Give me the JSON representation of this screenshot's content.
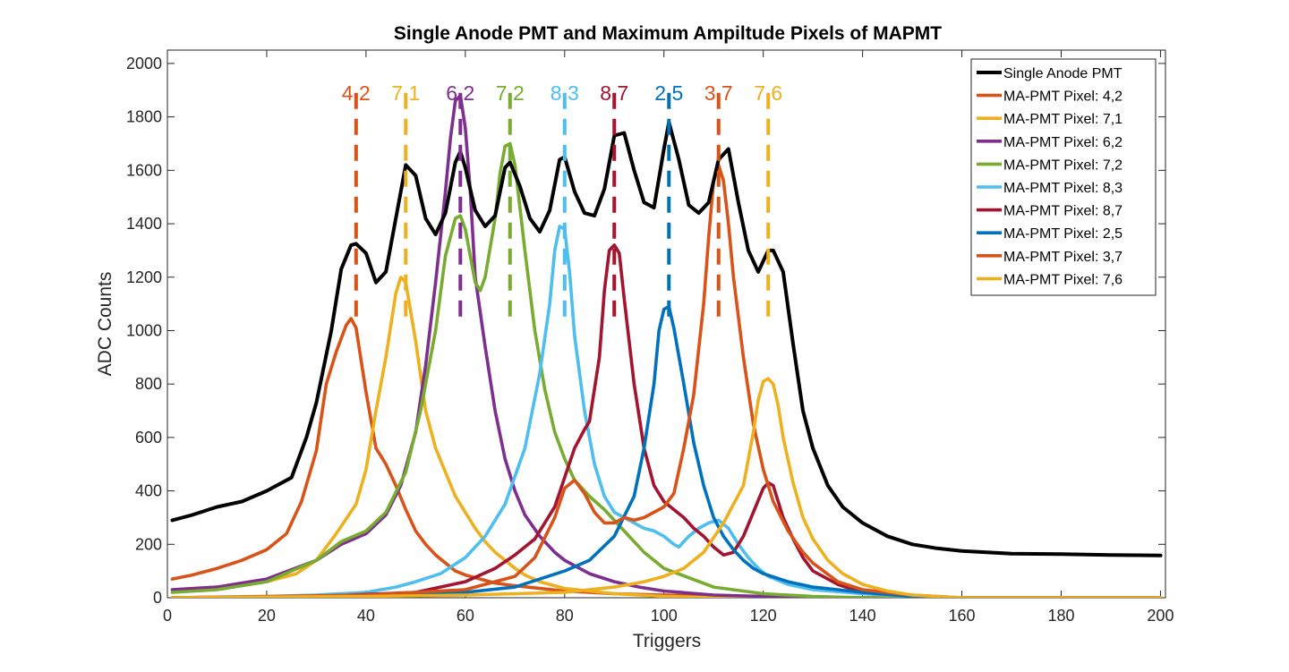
{
  "chart_data": {
    "type": "line",
    "title": "Single Anode PMT and Maximum Ampiltude Pixels of MAPMT",
    "xlabel": "Triggers",
    "ylabel": "ADC Counts",
    "xlim": [
      0,
      201
    ],
    "ylim": [
      0,
      2050
    ],
    "xticks": [
      0,
      20,
      40,
      60,
      80,
      100,
      120,
      140,
      160,
      180,
      200
    ],
    "yticks": [
      0,
      200,
      400,
      600,
      800,
      1000,
      1200,
      1400,
      1600,
      1800,
      2000
    ],
    "xtick_labels": [
      "0",
      "20",
      "40",
      "60",
      "80",
      "100",
      "120",
      "140",
      "160",
      "180",
      "200"
    ],
    "ytick_labels": [
      "0",
      "200",
      "400",
      "600",
      "800",
      "1000",
      "1200",
      "1400",
      "1600",
      "1800",
      "2000"
    ],
    "grid": false,
    "legend_position": "top-right",
    "series": [
      {
        "name": "Single Anode PMT",
        "color": "#000000",
        "x": [
          1,
          5,
          10,
          15,
          20,
          25,
          28,
          30,
          33,
          35,
          37,
          38,
          40,
          42,
          44,
          46,
          48,
          50,
          52,
          54,
          56,
          58,
          59,
          60,
          62,
          64,
          66,
          68,
          69,
          71,
          73,
          75,
          77,
          79,
          80,
          82,
          84,
          86,
          88,
          90,
          92,
          94,
          96,
          98,
          100,
          101,
          103,
          105,
          107,
          109,
          111,
          113,
          115,
          117,
          119,
          121,
          122,
          124,
          126,
          128,
          130,
          133,
          136,
          140,
          145,
          150,
          155,
          160,
          170,
          180,
          190,
          200
        ],
        "y": [
          290,
          310,
          340,
          360,
          400,
          450,
          600,
          730,
          1000,
          1230,
          1320,
          1325,
          1290,
          1180,
          1220,
          1420,
          1620,
          1580,
          1420,
          1360,
          1440,
          1630,
          1670,
          1610,
          1450,
          1390,
          1430,
          1610,
          1630,
          1540,
          1420,
          1370,
          1450,
          1640,
          1650,
          1520,
          1440,
          1430,
          1530,
          1730,
          1740,
          1600,
          1480,
          1460,
          1680,
          1780,
          1640,
          1470,
          1440,
          1480,
          1640,
          1680,
          1480,
          1300,
          1220,
          1300,
          1300,
          1220,
          950,
          700,
          560,
          420,
          340,
          280,
          230,
          200,
          185,
          175,
          165,
          163,
          160,
          158
        ]
      },
      {
        "name": "MA-PMT Pixel: 4,2",
        "color": "#D95319",
        "x": [
          1,
          5,
          10,
          15,
          20,
          24,
          27,
          30,
          32,
          34,
          36,
          37,
          38,
          40,
          42,
          44,
          46,
          48,
          50,
          52,
          54,
          56,
          58,
          60,
          62,
          64,
          66,
          70,
          75,
          80,
          90,
          100,
          110,
          120,
          130,
          140,
          150,
          160,
          170,
          180,
          190,
          200
        ],
        "y": [
          70,
          85,
          110,
          140,
          180,
          240,
          360,
          550,
          800,
          920,
          1020,
          1045,
          1010,
          770,
          560,
          500,
          420,
          330,
          250,
          200,
          160,
          130,
          100,
          85,
          75,
          65,
          55,
          45,
          35,
          25,
          15,
          10,
          5,
          0,
          0,
          0,
          0,
          0,
          0,
          0,
          0,
          0
        ]
      },
      {
        "name": "MA-PMT Pixel: 7,1",
        "color": "#EDB120",
        "x": [
          1,
          10,
          20,
          26,
          30,
          34,
          38,
          40,
          42,
          44,
          46,
          47,
          48,
          50,
          52,
          54,
          56,
          58,
          60,
          62,
          64,
          66,
          68,
          70,
          72,
          75,
          78,
          80,
          85,
          90,
          95,
          100,
          110,
          120,
          130,
          140,
          150,
          160,
          170,
          180,
          190,
          200
        ],
        "y": [
          30,
          40,
          60,
          90,
          140,
          240,
          350,
          480,
          700,
          900,
          1140,
          1200,
          1180,
          960,
          700,
          560,
          470,
          380,
          320,
          260,
          210,
          170,
          140,
          110,
          85,
          60,
          45,
          35,
          25,
          15,
          10,
          5,
          0,
          0,
          0,
          0,
          0,
          0,
          0,
          0,
          0,
          0
        ]
      },
      {
        "name": "MA-PMT Pixel: 6,2",
        "color": "#7E2F8E",
        "x": [
          1,
          10,
          20,
          30,
          35,
          40,
          44,
          47,
          50,
          52,
          54,
          56,
          57,
          58,
          59,
          60,
          61,
          62,
          64,
          66,
          68,
          70,
          72,
          75,
          78,
          80,
          85,
          90,
          95,
          100,
          110,
          120,
          130,
          140,
          150,
          160,
          170,
          180,
          190,
          200
        ],
        "y": [
          30,
          40,
          70,
          140,
          200,
          240,
          310,
          420,
          620,
          870,
          1180,
          1520,
          1720,
          1860,
          1880,
          1760,
          1520,
          1200,
          940,
          700,
          520,
          400,
          310,
          230,
          170,
          140,
          90,
          60,
          40,
          25,
          10,
          5,
          0,
          0,
          0,
          0,
          0,
          0,
          0,
          0
        ]
      },
      {
        "name": "MA-PMT Pixel: 7,2",
        "color": "#77AC30",
        "x": [
          1,
          10,
          20,
          30,
          35,
          40,
          44,
          48,
          51,
          54,
          56,
          58,
          59,
          60,
          62,
          63,
          64,
          66,
          67,
          68,
          69,
          70,
          72,
          74,
          76,
          78,
          80,
          82,
          85,
          88,
          92,
          96,
          100,
          110,
          120,
          130,
          140,
          150,
          160,
          170,
          180,
          190,
          200
        ],
        "y": [
          20,
          30,
          60,
          140,
          210,
          250,
          320,
          470,
          700,
          1000,
          1280,
          1420,
          1430,
          1380,
          1180,
          1150,
          1200,
          1420,
          1590,
          1690,
          1700,
          1620,
          1300,
          1000,
          780,
          620,
          520,
          440,
          380,
          330,
          250,
          170,
          110,
          40,
          15,
          5,
          0,
          0,
          0,
          0,
          0,
          0,
          0
        ]
      },
      {
        "name": "MA-PMT Pixel: 8,3",
        "color": "#4DBEEE",
        "x": [
          1,
          20,
          30,
          40,
          46,
          50,
          55,
          60,
          64,
          68,
          72,
          75,
          77,
          78,
          79,
          80,
          81,
          82,
          84,
          86,
          88,
          90,
          92,
          94,
          96,
          98,
          100,
          102,
          103,
          105,
          107,
          109,
          111,
          113,
          115,
          117,
          119,
          121,
          125,
          130,
          140,
          150,
          160,
          170,
          180,
          190,
          200
        ],
        "y": [
          0,
          5,
          10,
          20,
          40,
          60,
          90,
          150,
          230,
          350,
          560,
          840,
          1100,
          1300,
          1390,
          1380,
          1220,
          980,
          700,
          500,
          380,
          320,
          300,
          280,
          260,
          250,
          230,
          200,
          190,
          230,
          260,
          280,
          290,
          260,
          200,
          150,
          110,
          80,
          50,
          30,
          15,
          5,
          0,
          0,
          0,
          0,
          0
        ]
      },
      {
        "name": "MA-PMT Pixel: 8,7",
        "color": "#A2142F",
        "x": [
          1,
          30,
          50,
          60,
          66,
          70,
          74,
          78,
          82,
          84,
          85,
          87,
          88,
          89,
          90,
          91,
          92,
          94,
          96,
          98,
          100,
          102,
          104,
          106,
          108,
          110,
          112,
          114,
          116,
          118,
          120,
          121,
          122,
          124,
          126,
          128,
          130,
          135,
          140,
          150,
          160,
          170,
          180,
          190,
          200
        ],
        "y": [
          0,
          5,
          20,
          60,
          110,
          160,
          220,
          340,
          560,
          630,
          660,
          900,
          1150,
          1300,
          1320,
          1290,
          1120,
          800,
          560,
          420,
          360,
          330,
          300,
          260,
          230,
          190,
          160,
          170,
          230,
          320,
          410,
          430,
          420,
          300,
          220,
          150,
          100,
          50,
          20,
          5,
          0,
          0,
          0,
          0,
          0
        ]
      },
      {
        "name": "MA-PMT Pixel: 2,5",
        "color": "#0072BD",
        "x": [
          1,
          40,
          60,
          70,
          80,
          85,
          90,
          94,
          96,
          98,
          99,
          100,
          101,
          102,
          104,
          106,
          108,
          110,
          112,
          114,
          116,
          118,
          120,
          125,
          130,
          140,
          150,
          160,
          170,
          180,
          190,
          200
        ],
        "y": [
          0,
          5,
          20,
          40,
          100,
          140,
          230,
          380,
          560,
          800,
          1000,
          1080,
          1090,
          1010,
          800,
          580,
          420,
          300,
          230,
          180,
          140,
          110,
          90,
          60,
          40,
          20,
          5,
          0,
          0,
          0,
          0,
          0
        ]
      },
      {
        "name": "MA-PMT Pixel: 3,7",
        "color": "#D95319",
        "x": [
          1,
          40,
          60,
          70,
          74,
          78,
          80,
          82,
          84,
          86,
          88,
          90,
          92,
          94,
          96,
          98,
          100,
          102,
          104,
          106,
          108,
          109,
          110,
          111,
          112,
          113,
          114,
          116,
          118,
          120,
          122,
          125,
          128,
          130,
          135,
          140,
          150,
          160,
          170,
          180,
          190,
          200
        ],
        "y": [
          0,
          10,
          30,
          80,
          150,
          300,
          410,
          440,
          390,
          320,
          280,
          280,
          300,
          290,
          300,
          320,
          340,
          390,
          560,
          760,
          1100,
          1350,
          1560,
          1620,
          1560,
          1400,
          1200,
          900,
          650,
          480,
          360,
          250,
          170,
          130,
          60,
          30,
          10,
          0,
          0,
          0,
          0,
          0
        ]
      },
      {
        "name": "MA-PMT Pixel: 7,6",
        "color": "#EDB120",
        "x": [
          1,
          40,
          60,
          80,
          90,
          96,
          100,
          104,
          108,
          112,
          116,
          118,
          119,
          120,
          121,
          122,
          123,
          124,
          126,
          128,
          130,
          133,
          136,
          140,
          145,
          150,
          160,
          170,
          180,
          190,
          200
        ],
        "y": [
          0,
          5,
          10,
          20,
          40,
          60,
          80,
          110,
          170,
          280,
          420,
          620,
          740,
          810,
          820,
          800,
          720,
          600,
          430,
          300,
          220,
          140,
          90,
          50,
          25,
          10,
          0,
          0,
          0,
          0,
          0
        ]
      }
    ],
    "peak_markers": [
      {
        "label": "4,2",
        "x": 38,
        "color": "#D95319"
      },
      {
        "label": "7,1",
        "x": 48,
        "color": "#EDB120"
      },
      {
        "label": "6,2",
        "x": 59,
        "color": "#7E2F8E"
      },
      {
        "label": "7,2",
        "x": 69,
        "color": "#77AC30"
      },
      {
        "label": "8,3",
        "x": 80,
        "color": "#4DBEEE"
      },
      {
        "label": "8,7",
        "x": 90,
        "color": "#A2142F"
      },
      {
        "label": "2,5",
        "x": 101,
        "color": "#0072BD"
      },
      {
        "label": "3,7",
        "x": 111,
        "color": "#D95319"
      },
      {
        "label": "7,6",
        "x": 121,
        "color": "#EDB120"
      }
    ]
  }
}
